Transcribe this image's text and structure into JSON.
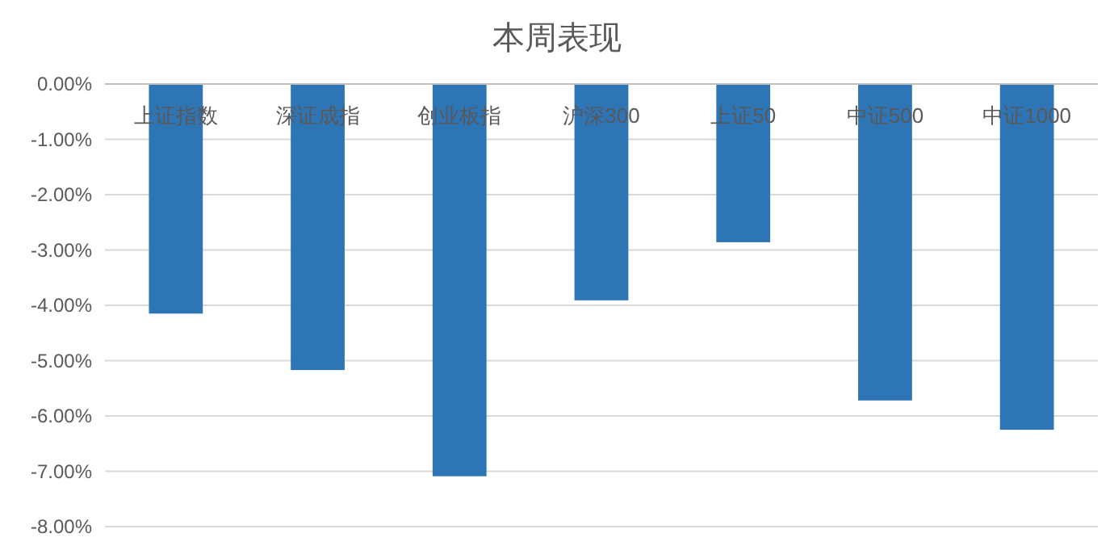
{
  "chart_data": {
    "type": "bar",
    "title": "本周表现",
    "categories": [
      "上证指数",
      "深证成指",
      "创业板指",
      "沪深300",
      "上证50",
      "中证500",
      "中证1000"
    ],
    "values": [
      -4.15,
      -5.17,
      -7.09,
      -3.91,
      -2.86,
      -5.72,
      -6.25
    ],
    "color": "#2e75b6",
    "ylim": [
      -8,
      0
    ],
    "yticks": [
      {
        "value": 0,
        "label": "0.00%"
      },
      {
        "value": -1,
        "label": "-1.00%"
      },
      {
        "value": -2,
        "label": "-2.00%"
      },
      {
        "value": -3,
        "label": "-3.00%"
      },
      {
        "value": -4,
        "label": "-4.00%"
      },
      {
        "value": -5,
        "label": "-5.00%"
      },
      {
        "value": -6,
        "label": "-6.00%"
      },
      {
        "value": -7,
        "label": "-7.00%"
      },
      {
        "value": -8,
        "label": "-8.00%"
      }
    ],
    "grid": "y"
  }
}
